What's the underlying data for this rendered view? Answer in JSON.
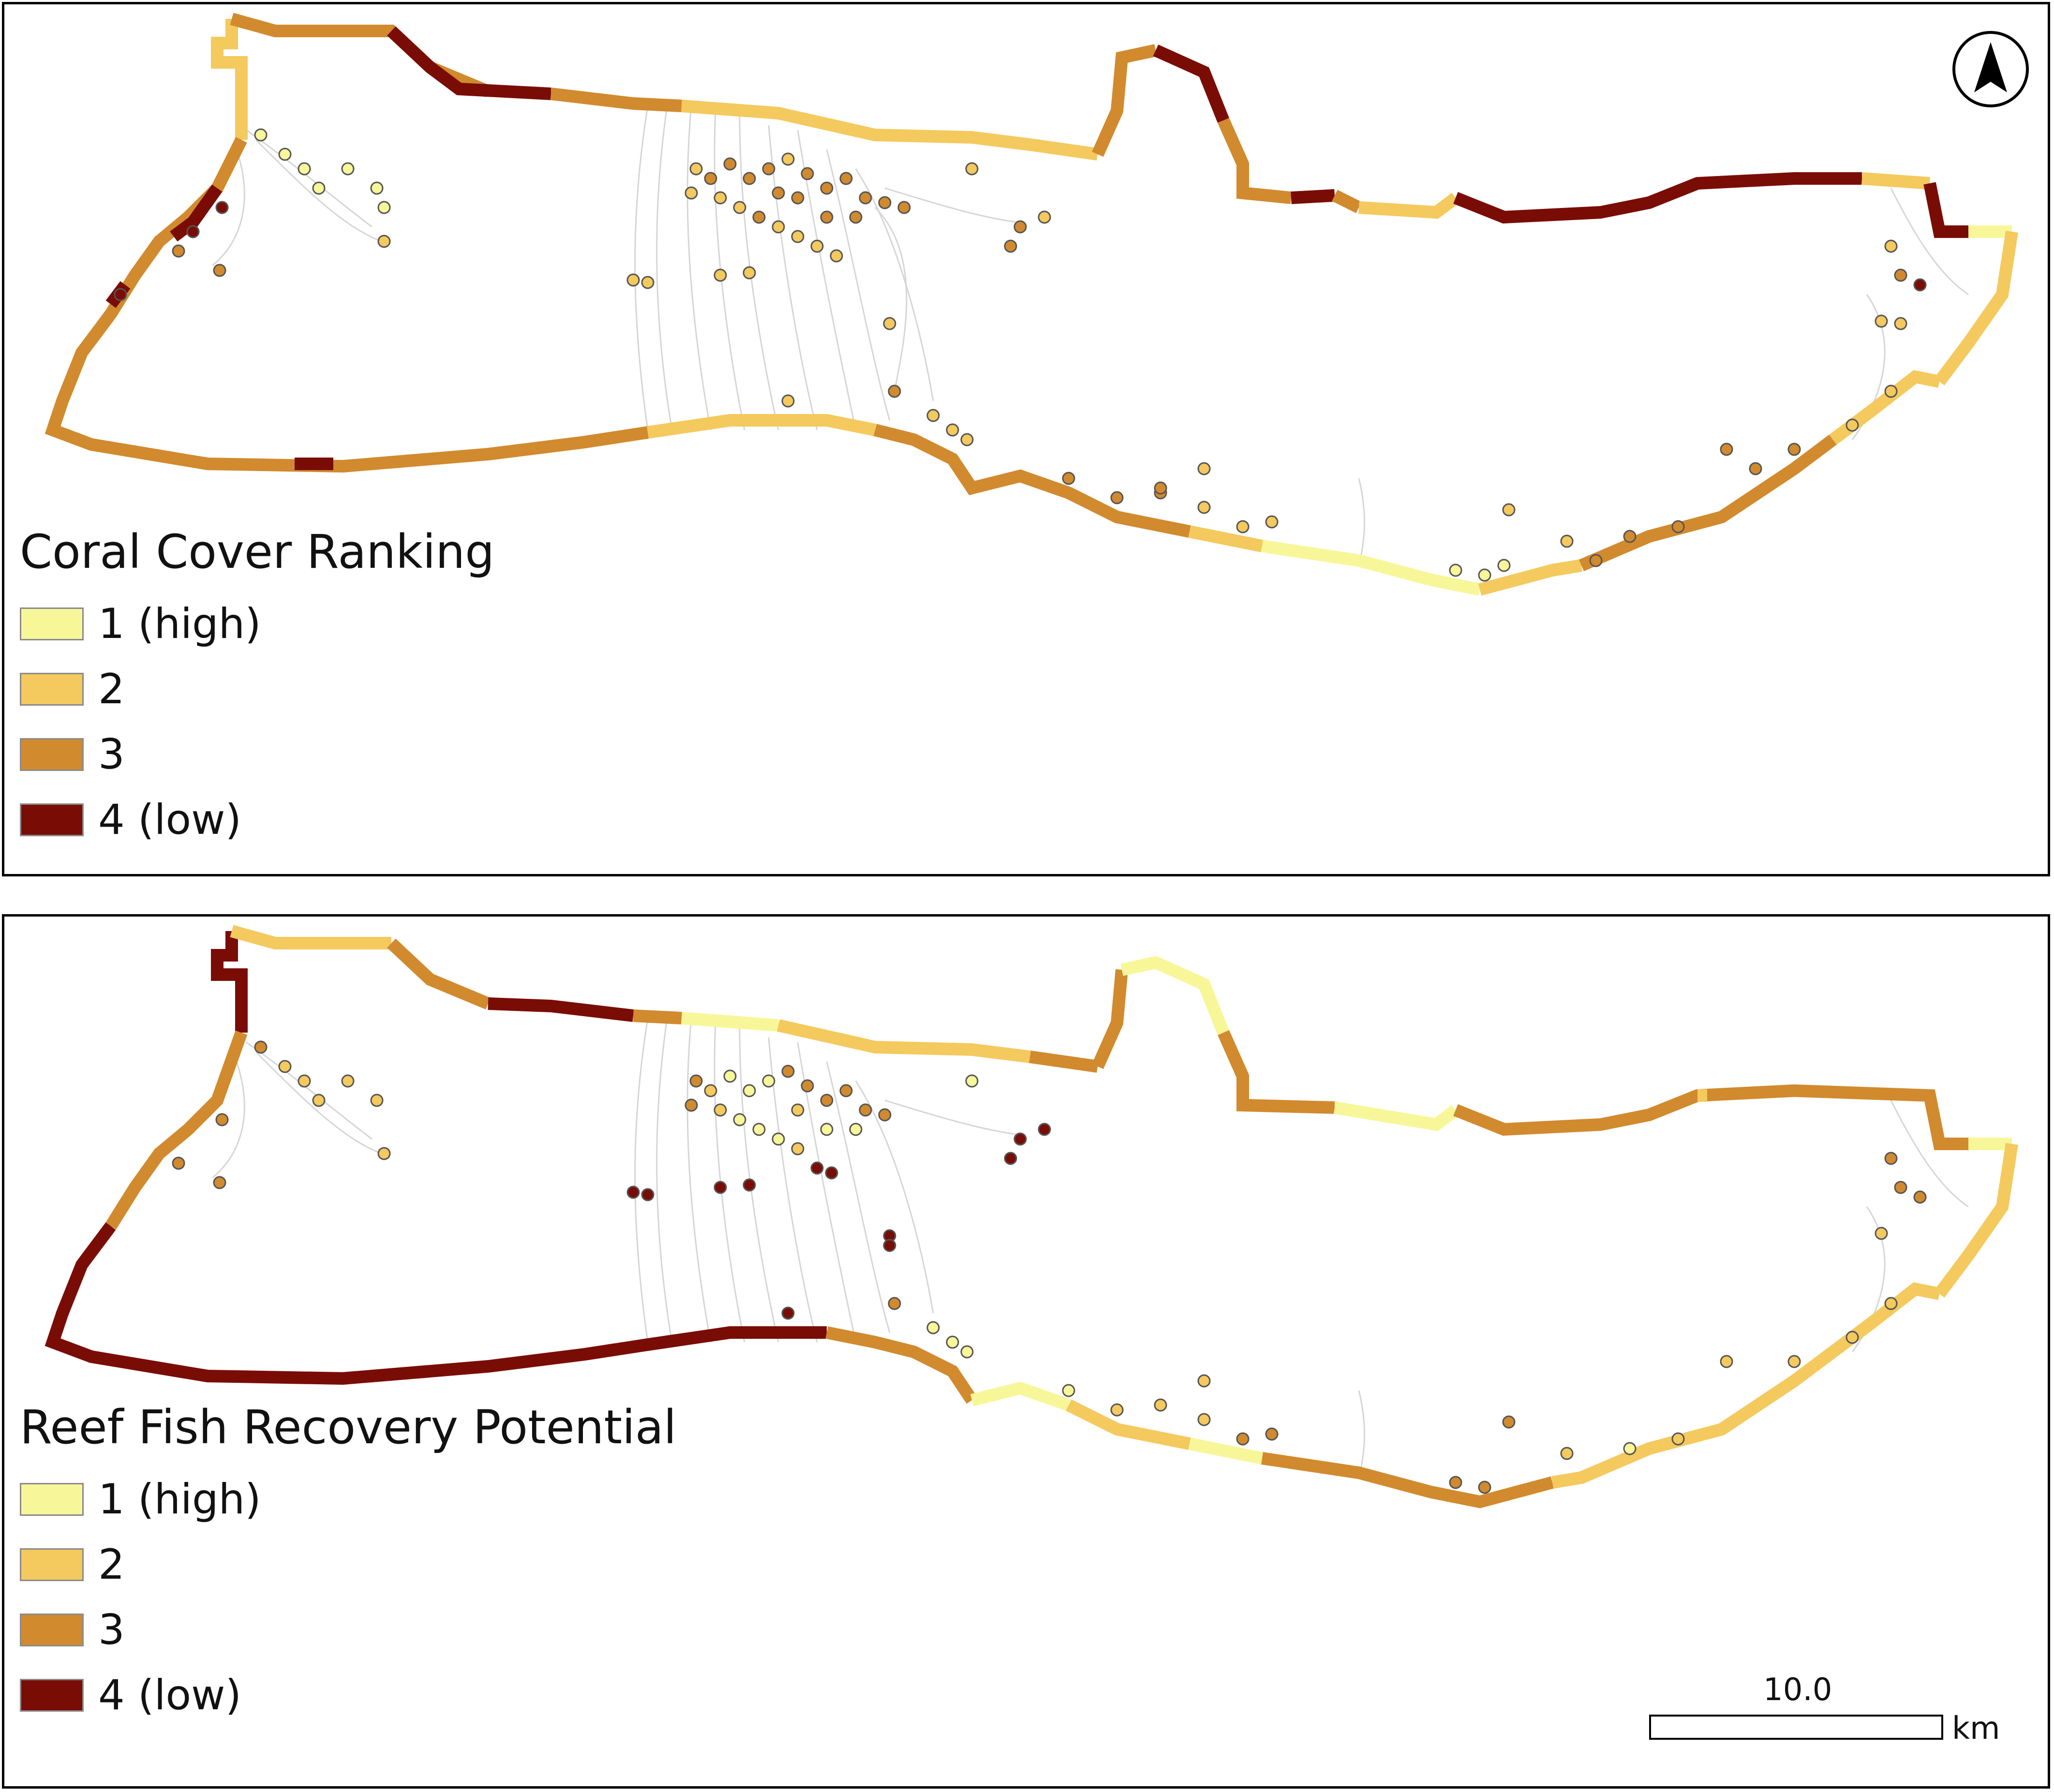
{
  "colors": {
    "rank_1": "#f7f79a",
    "rank_2": "#f4c95d",
    "rank_3": "#d18a2e",
    "rank_4": "#7a0c06",
    "track": "#d4d4d4"
  },
  "icons": {
    "north": "north-arrow-icon"
  },
  "panels": [
    {
      "id": "coral-cover",
      "legend_title": "Coral Cover Ranking",
      "legend_items": [
        {
          "label": "1 (high)",
          "color": "#f7f79a"
        },
        {
          "label": "2",
          "color": "#f4c95d"
        },
        {
          "label": "3",
          "color": "#d18a2e"
        },
        {
          "label": "4 (low)",
          "color": "#7a0c06"
        }
      ]
    },
    {
      "id": "reef-fish",
      "legend_title": "Reef Fish Recovery Potential",
      "legend_items": [
        {
          "label": "1 (high)",
          "color": "#f7f79a"
        },
        {
          "label": "2",
          "color": "#f4c95d"
        },
        {
          "label": "3",
          "color": "#d18a2e"
        },
        {
          "label": "4 (low)",
          "color": "#7a0c06"
        }
      ]
    }
  ],
  "scale_bar": {
    "value": "10.0",
    "unit": "km"
  }
}
